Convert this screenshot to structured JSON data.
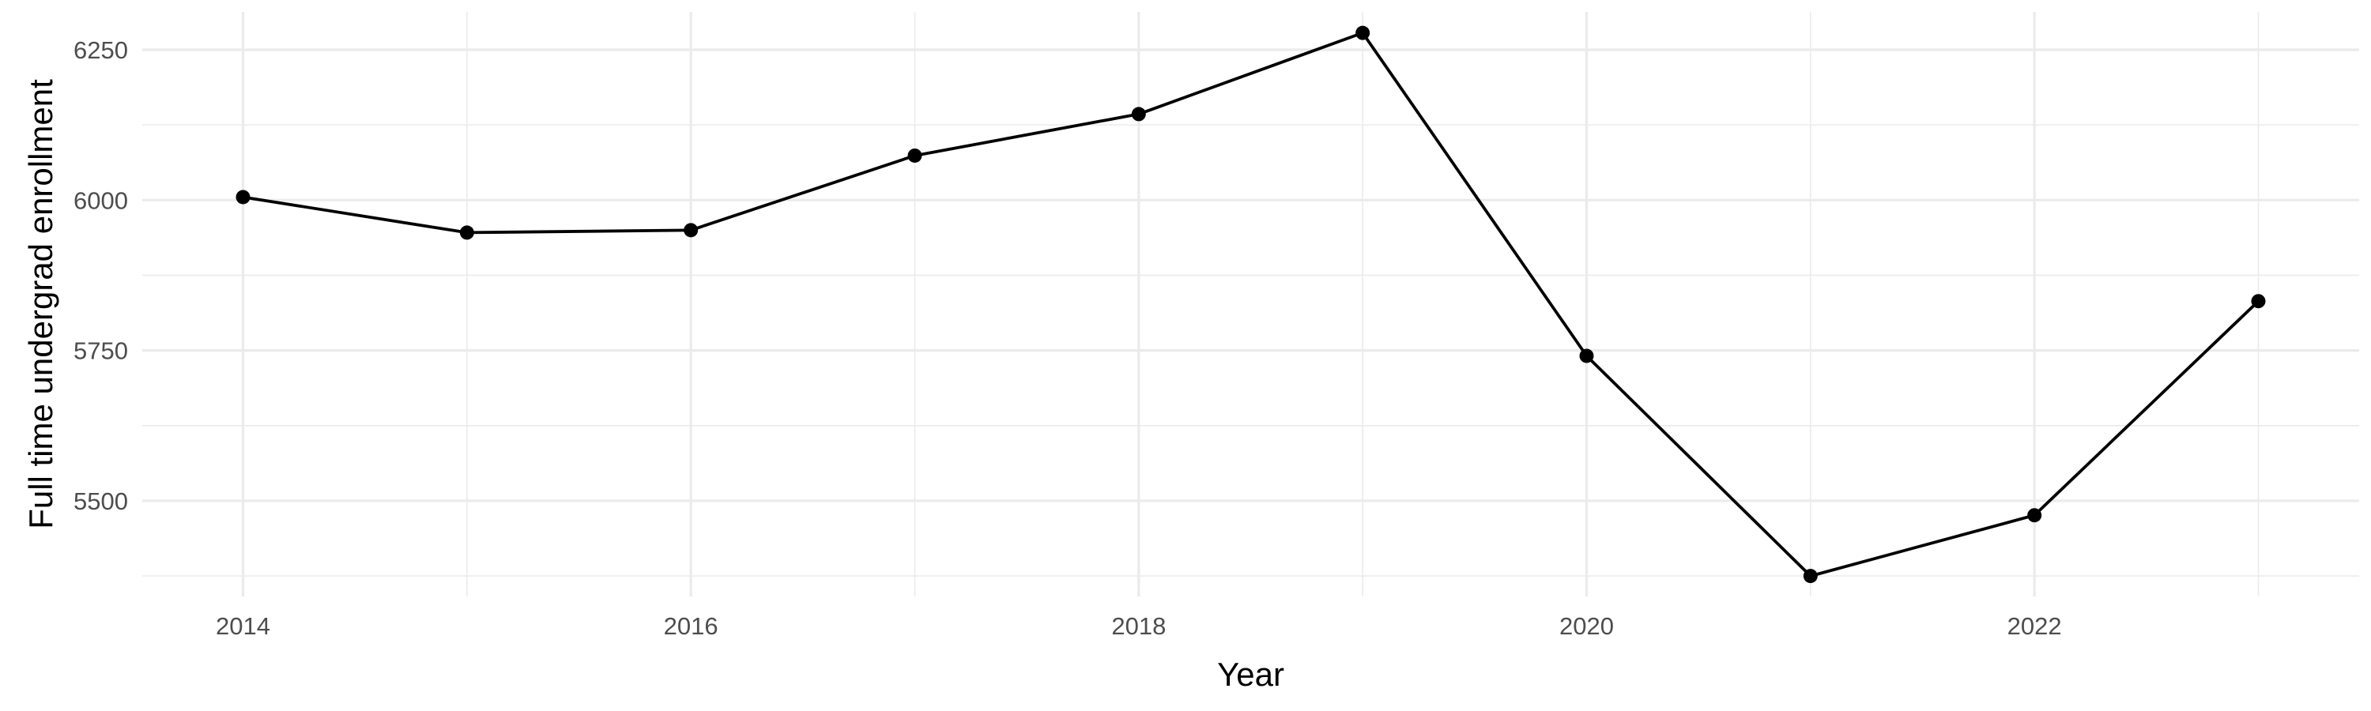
{
  "chart_data": {
    "type": "line",
    "title": "",
    "xlabel": "Year",
    "ylabel": "Full time undergrad enrollment",
    "x": [
      2014,
      2015,
      2016,
      2017,
      2018,
      2019,
      2020,
      2021,
      2022,
      2023
    ],
    "series": [
      {
        "values": [
          6005,
          5946,
          5950,
          6074,
          6143,
          6278,
          5741,
          5375,
          5476,
          5832
        ]
      }
    ],
    "xlim": [
      2013.55,
      2023.45
    ],
    "ylim": [
      5341,
      6313
    ],
    "x_ticks": [
      2014,
      2016,
      2018,
      2020,
      2022
    ],
    "x_minor_ticks": [
      2015,
      2017,
      2019,
      2021,
      2023
    ],
    "y_ticks": [
      5500,
      5750,
      6000,
      6250
    ],
    "y_minor_ticks": [
      5375,
      5625,
      5875,
      6125
    ],
    "x_tick_labels": [
      "2014",
      "2016",
      "2018",
      "2020",
      "2022"
    ],
    "y_tick_labels": [
      "5500",
      "5750",
      "6000",
      "6250"
    ],
    "grid": true,
    "legend": "none",
    "line_color": "#000000",
    "grid_color": "#ebebeb"
  }
}
